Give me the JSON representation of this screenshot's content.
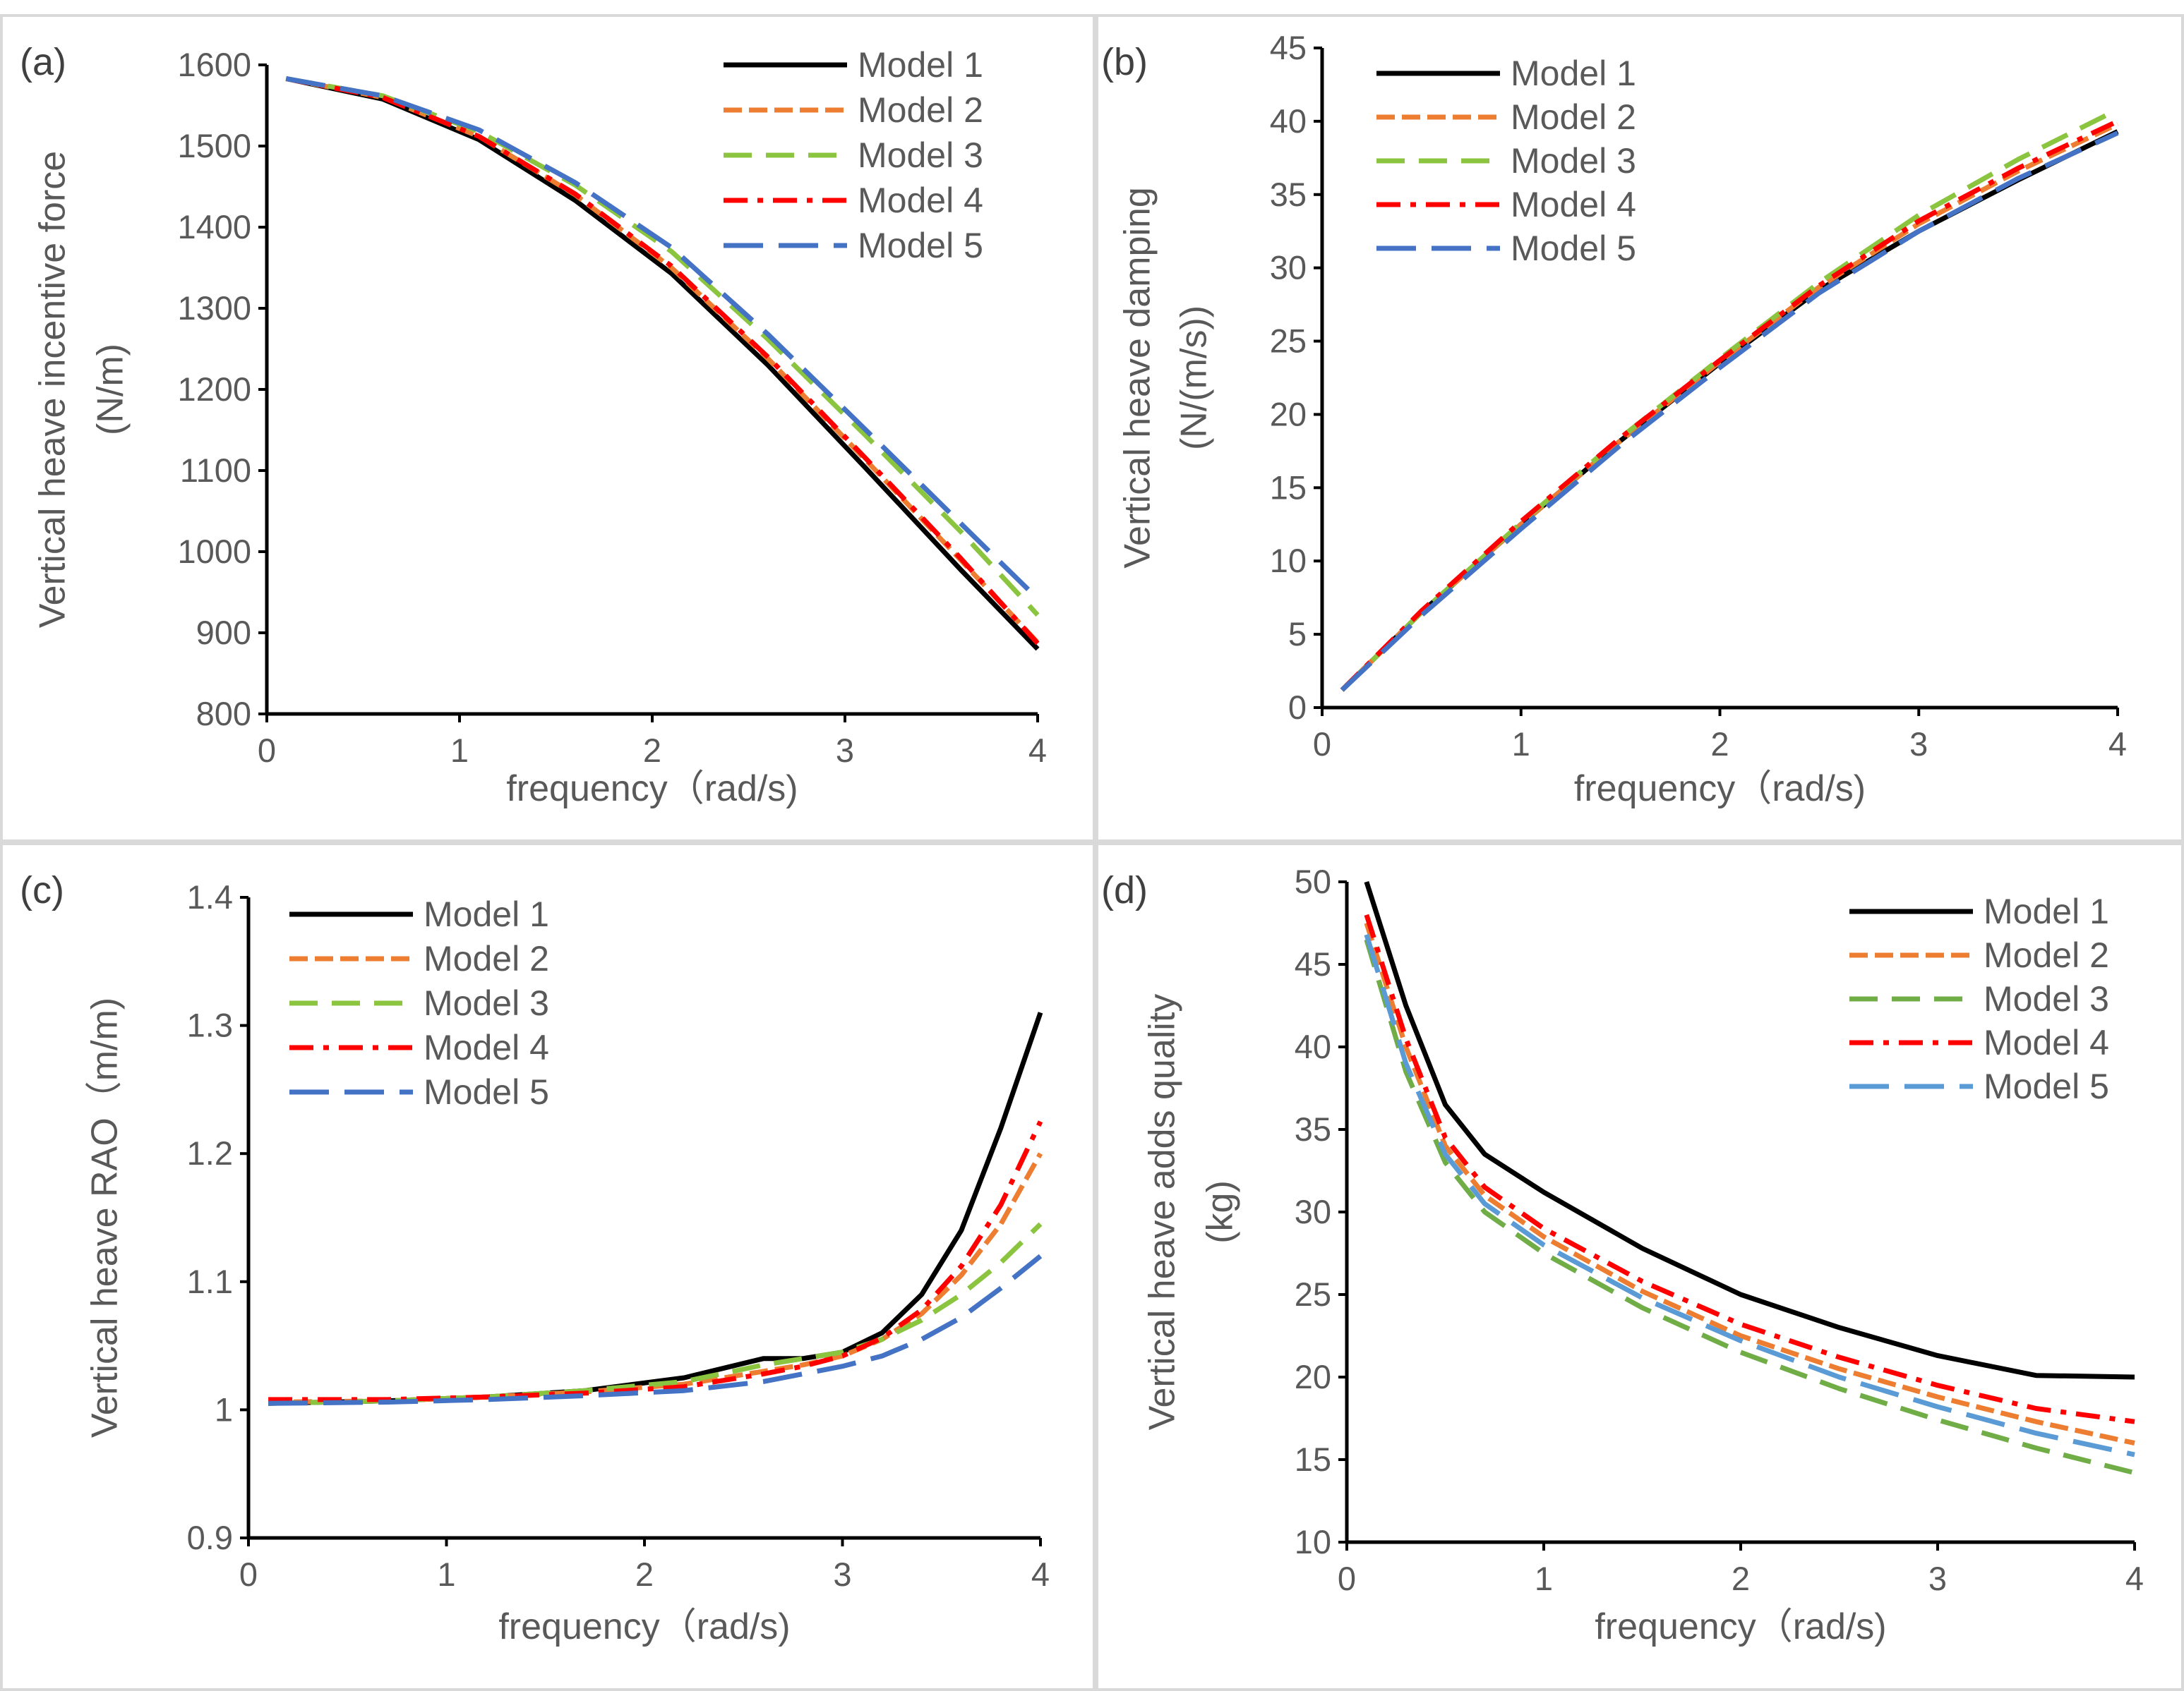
{
  "chart_data": [
    {
      "type": "line",
      "panel_label": "(a)",
      "title": "",
      "xlabel": "frequency（rad/s)",
      "ylabel": "Vertical heave incentive force",
      "ylabel2": "(N/m)",
      "xlim": [
        0,
        4
      ],
      "ylim": [
        800,
        1600
      ],
      "xticks": [
        "0",
        "1",
        "2",
        "3",
        "4"
      ],
      "yticks": [
        "800",
        "900",
        "1000",
        "1100",
        "1200",
        "1300",
        "1400",
        "1500",
        "1600"
      ],
      "x": [
        0.1,
        0.6,
        1.1,
        1.6,
        2.1,
        2.6,
        3.1,
        3.6,
        4.0
      ],
      "series": [
        {
          "name": "Model 1",
          "values": [
            1583,
            1558,
            1508,
            1433,
            1343,
            1230,
            1105,
            978,
            880
          ]
        },
        {
          "name": "Model 2",
          "values": [
            1583,
            1560,
            1512,
            1440,
            1350,
            1238,
            1115,
            990,
            888
          ]
        },
        {
          "name": "Model 3",
          "values": [
            1583,
            1562,
            1518,
            1452,
            1370,
            1262,
            1145,
            1025,
            922
          ]
        },
        {
          "name": "Model 4",
          "values": [
            1583,
            1560,
            1512,
            1441,
            1352,
            1240,
            1117,
            992,
            887
          ]
        },
        {
          "name": "Model 5",
          "values": [
            1583,
            1562,
            1520,
            1455,
            1375,
            1268,
            1152,
            1035,
            942
          ]
        }
      ],
      "legend": [
        "Model 1",
        "Model 2",
        "Model 3",
        "Model 4",
        "Model 5"
      ],
      "legend_position": "top-right"
    },
    {
      "type": "line",
      "panel_label": "(b)",
      "title": "",
      "xlabel": "frequency（rad/s)",
      "ylabel": "Vertical heave damping",
      "ylabel2": "(N/(m/s))",
      "xlim": [
        0,
        4
      ],
      "ylim": [
        0,
        45
      ],
      "xticks": [
        "0",
        "1",
        "2",
        "3",
        "4"
      ],
      "yticks": [
        "0",
        "5",
        "10",
        "15",
        "20",
        "25",
        "30",
        "35",
        "40",
        "45"
      ],
      "x": [
        0.1,
        0.5,
        1.0,
        1.5,
        2.0,
        2.5,
        3.0,
        3.5,
        4.0
      ],
      "series": [
        {
          "name": "Model 1",
          "values": [
            1.2,
            6.5,
            12.5,
            18.2,
            23.5,
            28.5,
            32.5,
            36.0,
            39.3
          ]
        },
        {
          "name": "Model 2",
          "values": [
            1.2,
            6.5,
            12.5,
            18.2,
            23.6,
            28.7,
            33.0,
            36.6,
            39.8
          ]
        },
        {
          "name": "Model 3",
          "values": [
            1.2,
            6.5,
            12.6,
            18.4,
            23.8,
            29.0,
            33.6,
            37.4,
            40.8
          ]
        },
        {
          "name": "Model 4",
          "values": [
            1.2,
            6.6,
            12.7,
            18.4,
            23.7,
            28.8,
            33.2,
            36.8,
            40.0
          ]
        },
        {
          "name": "Model 5",
          "values": [
            1.2,
            6.3,
            12.2,
            17.9,
            23.2,
            28.3,
            32.5,
            36.1,
            39.2
          ]
        }
      ],
      "legend": [
        "Model 1",
        "Model 2",
        "Model 3",
        "Model 4",
        "Model 5"
      ],
      "legend_position": "top-left"
    },
    {
      "type": "line",
      "panel_label": "(c)",
      "title": "",
      "xlabel": "frequency（rad/s)",
      "ylabel": "Vertical heave RAO（m/m)",
      "ylabel2": "",
      "xlim": [
        0,
        4
      ],
      "ylim": [
        0.9,
        1.4
      ],
      "xticks": [
        "0",
        "1",
        "2",
        "3",
        "4"
      ],
      "yticks": [
        "0.9",
        "1",
        "1.1",
        "1.2",
        "1.3",
        "1.4"
      ],
      "x": [
        0.1,
        0.7,
        1.2,
        1.7,
        2.2,
        2.6,
        2.8,
        3.0,
        3.2,
        3.4,
        3.6,
        3.8,
        4.0
      ],
      "series": [
        {
          "name": "Model 1",
          "values": [
            1.005,
            1.007,
            1.01,
            1.015,
            1.025,
            1.04,
            1.04,
            1.045,
            1.06,
            1.09,
            1.14,
            1.22,
            1.31
          ]
        },
        {
          "name": "Model 2",
          "values": [
            1.006,
            1.007,
            1.01,
            1.014,
            1.02,
            1.03,
            1.035,
            1.042,
            1.055,
            1.075,
            1.105,
            1.145,
            1.2
          ]
        },
        {
          "name": "Model 3",
          "values": [
            1.005,
            1.007,
            1.01,
            1.015,
            1.022,
            1.035,
            1.04,
            1.045,
            1.055,
            1.07,
            1.09,
            1.115,
            1.145
          ]
        },
        {
          "name": "Model 4",
          "values": [
            1.008,
            1.008,
            1.01,
            1.013,
            1.018,
            1.028,
            1.034,
            1.042,
            1.056,
            1.078,
            1.112,
            1.16,
            1.225
          ]
        },
        {
          "name": "Model 5",
          "values": [
            1.005,
            1.006,
            1.008,
            1.011,
            1.015,
            1.022,
            1.028,
            1.034,
            1.042,
            1.055,
            1.072,
            1.095,
            1.12
          ]
        }
      ],
      "legend": [
        "Model 1",
        "Model 2",
        "Model 3",
        "Model 4",
        "Model 5"
      ],
      "legend_position": "top-left"
    },
    {
      "type": "line",
      "panel_label": "(d)",
      "title": "",
      "xlabel": "frequency（rad/s)",
      "ylabel": "Vertical heave adds quality",
      "ylabel2": "(kg)",
      "xlim": [
        0,
        4
      ],
      "ylim": [
        10,
        50
      ],
      "xticks": [
        "0",
        "1",
        "2",
        "3",
        "4"
      ],
      "yticks": [
        "10",
        "15",
        "20",
        "25",
        "30",
        "35",
        "40",
        "45",
        "50"
      ],
      "x": [
        0.1,
        0.3,
        0.5,
        0.7,
        1.0,
        1.5,
        2.0,
        2.5,
        3.0,
        3.5,
        4.0
      ],
      "series": [
        {
          "name": "Model 1",
          "values": [
            50.0,
            42.5,
            36.5,
            33.5,
            31.2,
            27.8,
            25.0,
            23.0,
            21.3,
            20.1,
            20.0
          ]
        },
        {
          "name": "Model 2",
          "values": [
            47.5,
            40.0,
            34.0,
            31.0,
            28.5,
            25.2,
            22.5,
            20.5,
            18.8,
            17.3,
            16.0
          ]
        },
        {
          "name": "Model 3",
          "values": [
            46.5,
            38.5,
            33.0,
            30.0,
            27.5,
            24.2,
            21.5,
            19.3,
            17.4,
            15.7,
            14.2
          ]
        },
        {
          "name": "Model 4",
          "values": [
            48.0,
            40.5,
            34.5,
            31.5,
            29.0,
            25.8,
            23.2,
            21.2,
            19.5,
            18.1,
            17.3
          ]
        },
        {
          "name": "Model 5",
          "values": [
            46.8,
            39.0,
            33.5,
            30.5,
            28.0,
            24.8,
            22.2,
            20.0,
            18.2,
            16.6,
            15.3
          ]
        }
      ],
      "legend": [
        "Model 1",
        "Model 2",
        "Model 3",
        "Model 4",
        "Model 5"
      ],
      "legend_position": "top-right"
    }
  ],
  "series_colors": [
    "#000000",
    "#ed7d31",
    "#8bc53f",
    "#ff0000",
    "#4472c4"
  ],
  "series_colors_d": [
    "#000000",
    "#ed7d31",
    "#70ad47",
    "#ff0000",
    "#5b9bd5"
  ]
}
